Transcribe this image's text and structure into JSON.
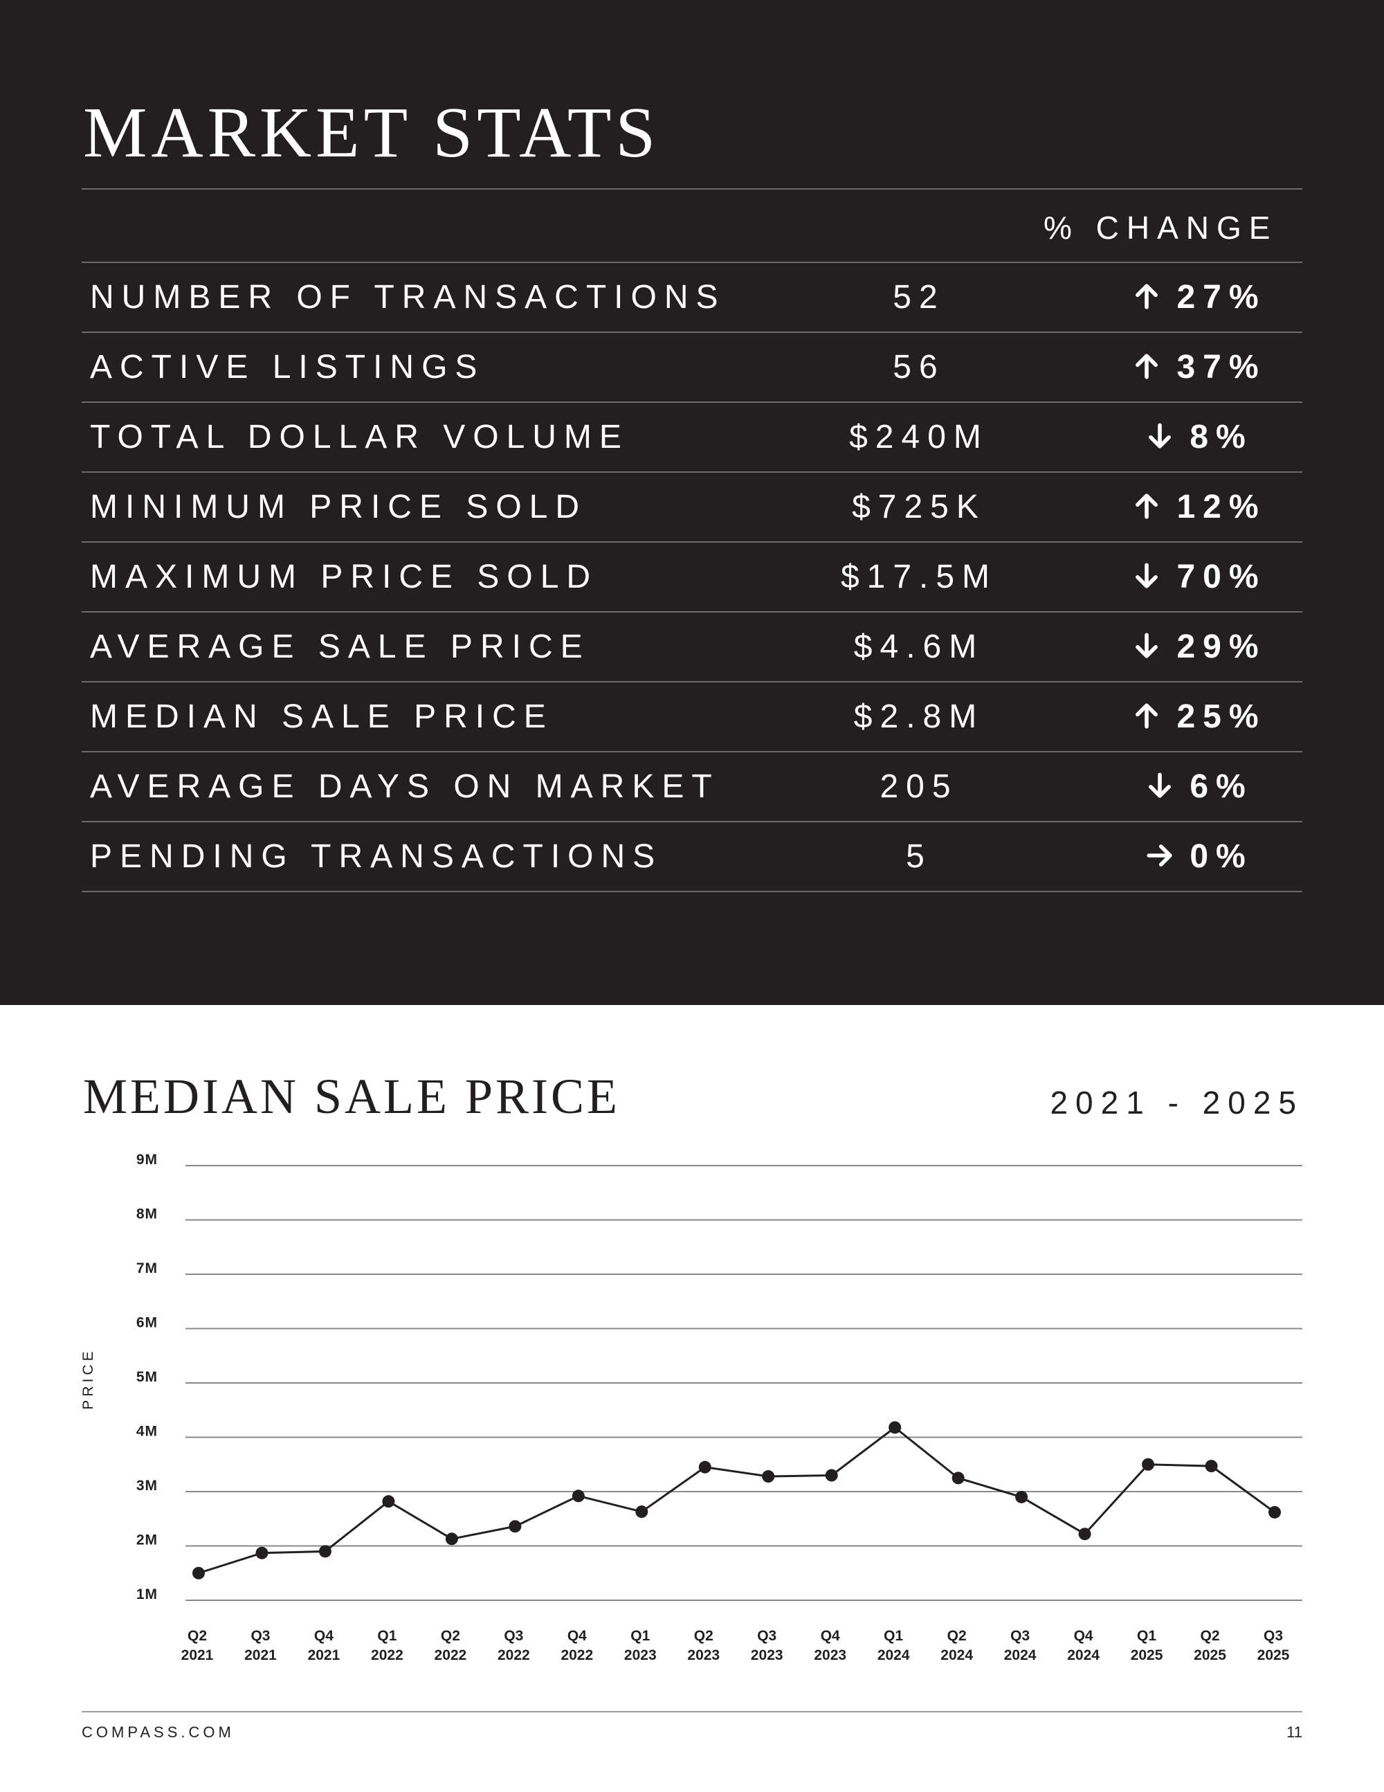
{
  "stats": {
    "title": "MARKET STATS",
    "change_header": "% CHANGE",
    "rows": [
      {
        "label": "NUMBER OF TRANSACTIONS",
        "value": "52",
        "change": "27%",
        "direction": "up"
      },
      {
        "label": "ACTIVE LISTINGS",
        "value": "56",
        "change": "37%",
        "direction": "up"
      },
      {
        "label": "TOTAL DOLLAR VOLUME",
        "value": "$240M",
        "change": "8%",
        "direction": "down"
      },
      {
        "label": "MINIMUM PRICE SOLD",
        "value": "$725K",
        "change": "12%",
        "direction": "up"
      },
      {
        "label": "MAXIMUM PRICE SOLD",
        "value": "$17.5M",
        "change": "70%",
        "direction": "down"
      },
      {
        "label": "AVERAGE SALE PRICE",
        "value": "$4.6M",
        "change": "29%",
        "direction": "down"
      },
      {
        "label": "MEDIAN SALE PRICE",
        "value": "$2.8M",
        "change": "25%",
        "direction": "up"
      },
      {
        "label": "AVERAGE DAYS ON MARKET",
        "value": "205",
        "change": "6%",
        "direction": "down"
      },
      {
        "label": "PENDING TRANSACTIONS",
        "value": "5",
        "change": "0%",
        "direction": "flat"
      }
    ]
  },
  "chart_section": {
    "title": "MEDIAN SALE PRICE",
    "range": "2021 - 2025"
  },
  "chart_data": {
    "type": "line",
    "title": "MEDIAN SALE PRICE",
    "subtitle": "2021 - 2025",
    "ylabel": "PRICE",
    "xlabel": "",
    "ylim": [
      1,
      9
    ],
    "y_unit": "M",
    "yticks": [
      "1M",
      "2M",
      "3M",
      "4M",
      "5M",
      "6M",
      "7M",
      "8M",
      "9M"
    ],
    "grid": true,
    "categories": [
      [
        "Q2",
        "2021"
      ],
      [
        "Q3",
        "2021"
      ],
      [
        "Q4",
        "2021"
      ],
      [
        "Q1",
        "2022"
      ],
      [
        "Q2",
        "2022"
      ],
      [
        "Q3",
        "2022"
      ],
      [
        "Q4",
        "2022"
      ],
      [
        "Q1",
        "2023"
      ],
      [
        "Q2",
        "2023"
      ],
      [
        "Q3",
        "2023"
      ],
      [
        "Q4",
        "2023"
      ],
      [
        "Q1",
        "2024"
      ],
      [
        "Q2",
        "2024"
      ],
      [
        "Q3",
        "2024"
      ],
      [
        "Q4",
        "2024"
      ],
      [
        "Q1",
        "2025"
      ],
      [
        "Q2",
        "2025"
      ],
      [
        "Q3",
        "2025"
      ]
    ],
    "series": [
      {
        "values": [
          1.5,
          1.87,
          1.9,
          2.82,
          2.13,
          2.36,
          2.92,
          2.63,
          3.45,
          3.28,
          3.3,
          4.18,
          3.25,
          2.9,
          2.22,
          3.5,
          3.47,
          2.62
        ],
        "color": "#231f20"
      }
    ]
  },
  "footer": {
    "site": "COMPASS.COM",
    "page": "11"
  },
  "colors": {
    "dark_bg": "#231f20",
    "text_light": "#ffffff",
    "rule": "#6e6a6b"
  },
  "icons": {
    "up": "arrow-up-icon",
    "down": "arrow-down-icon",
    "flat": "arrow-right-icon"
  }
}
